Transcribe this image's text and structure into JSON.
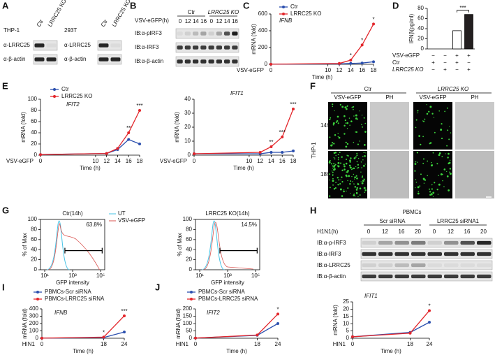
{
  "panels": [
    "A",
    "B",
    "C",
    "D",
    "E",
    "F",
    "G",
    "H",
    "I",
    "J"
  ],
  "blot_A": [
    {
      "name": "THP-1",
      "lanes": [
        "Ctr",
        "LRRC25 KO"
      ],
      "rows": [
        "α-LRRC25",
        "α-β-actin"
      ]
    },
    {
      "name": "293T",
      "lanes": [
        "Ctr",
        "LRRC25 KO"
      ],
      "rows": [
        "α-LRRC25",
        "α-β-actin"
      ]
    }
  ],
  "blot_B": {
    "time_label": "VSV-eGFP(h)",
    "groups": [
      "Ctr",
      "LRRC25 KO"
    ],
    "lanes": [
      "0",
      "12",
      "14",
      "16",
      "0",
      "12",
      "14",
      "16"
    ],
    "rows": [
      "IB:α-pIRF3",
      "IB:α-IRF3",
      "IB:α-β-actin"
    ]
  },
  "microscopy_F": {
    "groups": [
      "Ctr",
      "LRRC25 KO"
    ],
    "columns": [
      "VSV-eGFP",
      "PH",
      "VSV-eGFP",
      "PH"
    ],
    "cell_line": "THP-1",
    "rows": [
      "14h",
      "18h"
    ]
  },
  "flow_G": {
    "ylabel": "% of Max",
    "xlabel": "GFP intensity",
    "yticks": [
      "0",
      "20",
      "40",
      "60",
      "80",
      "100"
    ],
    "xticks": [
      "10¹",
      "10³",
      "10⁵"
    ],
    "legend": [
      "UT",
      "VSV-eGFP"
    ],
    "plots": [
      {
        "title": "Ctr(14h)",
        "percent": "63.8%"
      },
      {
        "title": "LRRC25 KO(14h)",
        "percent": "14.5%"
      }
    ]
  },
  "blot_H": {
    "title": "PBMCs",
    "groups": [
      "Scr siRNA",
      "LRRC25 siRNA1"
    ],
    "time_label": "H1N1(h)",
    "lanes": [
      "0",
      "12",
      "16",
      "20",
      "0",
      "12",
      "16",
      "20"
    ],
    "rows": [
      "IB:α-p-IRF3",
      "IB:α-IRF3",
      "IB:α-LRRC25",
      "IB:α-β-actin"
    ]
  },
  "chart_data": [
    {
      "type": "line",
      "title": "IFNB",
      "x_prefix": "VSV-eGFP",
      "xlabel": "Time (h)",
      "ylabel": "mRNA (fold)",
      "x": [
        0,
        12,
        14,
        16,
        18
      ],
      "xlim": [
        0,
        18
      ],
      "xticks": [
        0,
        10,
        12,
        14,
        16,
        18
      ],
      "ylim": [
        0,
        600
      ],
      "yticks": [
        0,
        200,
        400,
        600
      ],
      "series": [
        {
          "name": "Ctr",
          "color": "#2b4fae",
          "values": [
            1,
            5,
            10,
            15,
            30
          ]
        },
        {
          "name": "LRRC25 KO",
          "color": "#e3262b",
          "values": [
            1,
            10,
            50,
            230,
            480
          ]
        }
      ],
      "annotations": [
        {
          "x": 14,
          "text": "*"
        },
        {
          "x": 16,
          "text": "*"
        },
        {
          "x": 18,
          "text": "*"
        }
      ]
    },
    {
      "type": "bar",
      "ylabel": "IFNβ(pg/ml)",
      "ylim": [
        0,
        80
      ],
      "yticks": [
        0,
        20,
        40,
        60,
        80
      ],
      "values": [
        0,
        0,
        36,
        68
      ],
      "colors": [
        "#ffffff",
        "#ffffff",
        "#ffffff",
        "#231f20"
      ],
      "condition_rows": [
        {
          "name": "VSV-eGFP",
          "signs": [
            "−",
            "−",
            "+",
            "+"
          ]
        },
        {
          "name": "Ctr",
          "signs": [
            "+",
            "−",
            "+",
            "−"
          ]
        },
        {
          "name": "LRRC25 KO",
          "signs": [
            "−",
            "+",
            "−",
            "+"
          ]
        }
      ],
      "annotations": [
        {
          "from": 2,
          "to": 3,
          "text": "***"
        }
      ]
    },
    {
      "type": "line",
      "title": "IFIT2",
      "x_prefix": "VSV-eGFP",
      "xlabel": "Time (h)",
      "ylabel": "mRNA (fold)",
      "x": [
        0,
        12,
        14,
        16,
        18
      ],
      "xlim": [
        0,
        18
      ],
      "xticks": [
        0,
        10,
        12,
        14,
        16,
        18
      ],
      "ylim": [
        0,
        100
      ],
      "yticks": [
        0,
        20,
        40,
        60,
        80,
        100
      ],
      "series": [
        {
          "name": "Ctr",
          "color": "#2b4fae",
          "values": [
            1,
            3,
            10,
            28,
            20
          ]
        },
        {
          "name": "LRRC25 KO",
          "color": "#e3262b",
          "values": [
            1,
            3,
            12,
            40,
            80
          ]
        }
      ],
      "annotations": [
        {
          "x": 16,
          "text": "**"
        },
        {
          "x": 18,
          "text": "***"
        }
      ]
    },
    {
      "type": "line",
      "title": "IFIT1",
      "x_prefix": "VSV-eGFP",
      "xlabel": "Time (h)",
      "ylabel": "mRNA (fold)",
      "x": [
        0,
        12,
        14,
        16,
        18
      ],
      "xlim": [
        0,
        18
      ],
      "xticks": [
        0,
        10,
        12,
        14,
        16,
        18
      ],
      "ylim": [
        0,
        40
      ],
      "yticks": [
        0,
        10,
        20,
        30,
        40
      ],
      "series": [
        {
          "color": "#2b4fae",
          "values": [
            1,
            1,
            2,
            2,
            3
          ]
        },
        {
          "color": "#e3262b",
          "values": [
            1,
            2,
            6,
            13,
            33
          ]
        }
      ],
      "annotations": [
        {
          "x": 14,
          "text": "**"
        },
        {
          "x": 16,
          "text": "***"
        },
        {
          "x": 18,
          "text": "***"
        }
      ]
    },
    {
      "type": "line",
      "title": "IFNB",
      "x_prefix": "HIN1",
      "xlabel": "Time (h)",
      "ylabel": "mRNA (fold)",
      "x": [
        0,
        18,
        24
      ],
      "xlim": [
        0,
        24
      ],
      "xticks": [
        0,
        18,
        24
      ],
      "ylim": [
        0,
        400
      ],
      "yticks": [
        0,
        100,
        200,
        300,
        400
      ],
      "series": [
        {
          "name": "PBMCs-Scr siRNA",
          "color": "#2b4fae",
          "values": [
            1,
            10,
            85
          ]
        },
        {
          "name": "PBMCs-LRRC25 siRNA",
          "color": "#e3262b",
          "values": [
            1,
            15,
            305
          ]
        }
      ],
      "annotations": [
        {
          "x": 18,
          "text": "*"
        },
        {
          "x": 24,
          "text": "***"
        }
      ]
    },
    {
      "type": "line",
      "title": "IFIT2",
      "x_prefix": "HIN1",
      "xlabel": "Time (h)",
      "ylabel": "mRNA (fold)",
      "x": [
        0,
        18,
        24
      ],
      "xlim": [
        0,
        24
      ],
      "xticks": [
        0,
        18,
        24
      ],
      "ylim": [
        0,
        200
      ],
      "yticks": [
        0,
        50,
        100,
        150,
        200
      ],
      "series": [
        {
          "name": "PBMCs-Scr siRNA",
          "color": "#2b4fae",
          "values": [
            1,
            20,
            100
          ]
        },
        {
          "name": "PBMCs-LRRC25 siRNA",
          "color": "#e3262b",
          "values": [
            1,
            22,
            165
          ]
        }
      ],
      "annotations": [
        {
          "x": 24,
          "text": "*"
        }
      ]
    },
    {
      "type": "line",
      "title": "IFIT1",
      "x_prefix": "HIN1",
      "xlabel": "Time (h)",
      "ylabel": "mRNA (fold)",
      "x": [
        0,
        18,
        24
      ],
      "xlim": [
        0,
        24
      ],
      "xticks": [
        0,
        18,
        24
      ],
      "ylim": [
        0,
        25
      ],
      "yticks": [
        0,
        5,
        10,
        15,
        20,
        25
      ],
      "series": [
        {
          "color": "#2b4fae",
          "values": [
            1,
            4,
            11
          ]
        },
        {
          "color": "#e3262b",
          "values": [
            1,
            3.5,
            19
          ]
        }
      ],
      "annotations": [
        {
          "x": 24,
          "text": "*"
        }
      ]
    }
  ]
}
